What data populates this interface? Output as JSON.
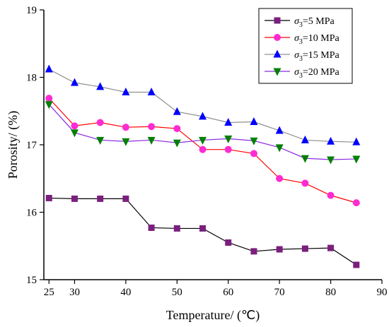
{
  "chart_data": {
    "type": "line",
    "xlabel": "Temperature/ (℃)",
    "ylabel": "Porosity/ (%)",
    "xlim": [
      24,
      90
    ],
    "ylim": [
      15,
      19
    ],
    "xticks": [
      25,
      30,
      40,
      50,
      60,
      70,
      80,
      90
    ],
    "xtick_labels": [
      "25",
      "30",
      "40",
      "50",
      "60",
      "70",
      "80",
      "90"
    ],
    "yticks": [
      15,
      16,
      17,
      18,
      19
    ],
    "ytick_labels": [
      "15",
      "16",
      "17",
      "18",
      "19"
    ],
    "legend_position": "top-right",
    "x": [
      25,
      30,
      35,
      40,
      45,
      50,
      55,
      60,
      65,
      70,
      75,
      80,
      85
    ],
    "series": [
      {
        "name": "σ3=5 MPa",
        "legend_prefix": "σ",
        "legend_sub": "3",
        "legend_suffix": "=5 MPa",
        "color": "#000000",
        "marker_color": "#7b1f7e",
        "marker": "square",
        "values": [
          16.21,
          16.2,
          16.2,
          16.2,
          15.77,
          15.76,
          15.76,
          15.55,
          15.42,
          15.45,
          15.46,
          15.47,
          15.22
        ]
      },
      {
        "name": "σ3=10 MPa",
        "legend_prefix": "σ",
        "legend_sub": "3",
        "legend_suffix": "=10 MPa",
        "color": "#ff0000",
        "marker_color": "#ff2bd2",
        "marker": "circle",
        "values": [
          17.69,
          17.28,
          17.33,
          17.26,
          17.27,
          17.24,
          16.93,
          16.93,
          16.87,
          16.5,
          16.43,
          16.25,
          16.14
        ]
      },
      {
        "name": "σ3=15 MPa",
        "legend_prefix": "σ",
        "legend_sub": "3",
        "legend_suffix": "=15 MPa",
        "color": "#909090",
        "marker_color": "#0000ff",
        "marker": "triangle-up",
        "values": [
          18.12,
          17.92,
          17.86,
          17.78,
          17.78,
          17.49,
          17.42,
          17.33,
          17.34,
          17.21,
          17.07,
          17.05,
          17.04
        ]
      },
      {
        "name": "σ3=20 MPa",
        "legend_prefix": "σ",
        "legend_sub": "3",
        "legend_suffix": "=20 MPa",
        "color": "#8a2be2",
        "marker_color": "#008000",
        "marker": "triangle-down",
        "values": [
          17.6,
          17.18,
          17.07,
          17.05,
          17.07,
          17.03,
          17.07,
          17.09,
          17.06,
          16.96,
          16.8,
          16.78,
          16.79
        ]
      }
    ]
  }
}
